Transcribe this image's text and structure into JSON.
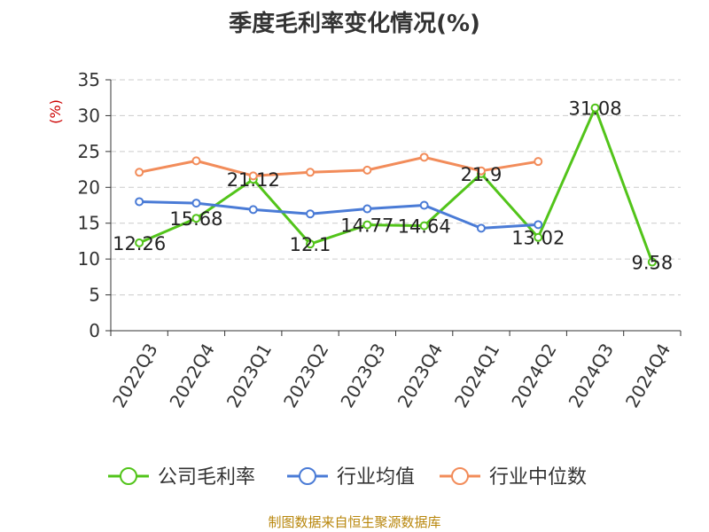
{
  "chart_data": {
    "type": "line",
    "title": "季度毛利率变化情况(%)",
    "ylabel": "(%)",
    "xlabel": "",
    "ylim": [
      0,
      35
    ],
    "yticks": [
      0,
      5,
      10,
      15,
      20,
      25,
      30,
      35
    ],
    "grid": true,
    "legend_position": "bottom",
    "categories": [
      "2022Q3",
      "2022Q4",
      "2023Q1",
      "2023Q2",
      "2023Q3",
      "2023Q4",
      "2024Q1",
      "2024Q2",
      "2024Q3",
      "2024Q4"
    ],
    "series": [
      {
        "name": "公司毛利率",
        "color": "#52c41a",
        "values": [
          12.26,
          15.68,
          21.12,
          12.1,
          14.77,
          14.64,
          21.9,
          13.02,
          31.08,
          9.58
        ],
        "labels": [
          "12.26",
          "15.68",
          "21.12",
          "12.1",
          "14.77",
          "14.64",
          "21.9",
          "13.02",
          "31.08",
          "9.58"
        ]
      },
      {
        "name": "行业均值",
        "color": "#4a7bd6",
        "values": [
          18.0,
          17.8,
          16.9,
          16.3,
          17.0,
          17.5,
          14.3,
          14.8,
          null,
          null
        ]
      },
      {
        "name": "行业中位数",
        "color": "#f28c5a",
        "values": [
          22.1,
          23.7,
          21.6,
          22.1,
          22.4,
          24.2,
          22.3,
          23.6,
          null,
          null
        ]
      }
    ]
  },
  "source_text": "制图数据来自恒生聚源数据库"
}
